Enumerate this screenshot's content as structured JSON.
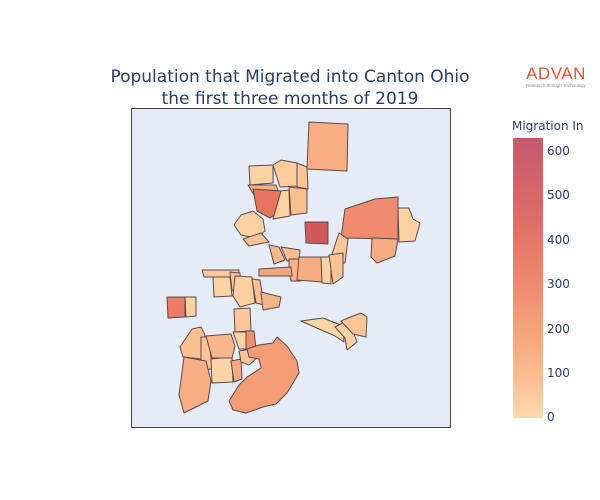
{
  "title": {
    "line1": "Population that Migrated into Canton Ohio",
    "line2": "the first three months of 2019"
  },
  "logo": {
    "brand": "ADVAN",
    "tagline": "Research through Technology"
  },
  "legend": {
    "title": "Migration In",
    "ticks": [
      "600",
      "500",
      "400",
      "300",
      "200",
      "100",
      "0"
    ],
    "min": 0,
    "max": 630
  },
  "map": {
    "type": "choropleth",
    "region_count": 44
  }
}
